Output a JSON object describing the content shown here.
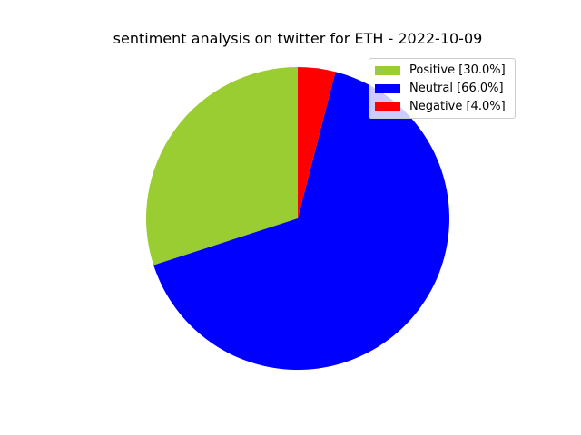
{
  "chart_data": {
    "type": "pie",
    "title": "sentiment analysis on twitter for ETH - 2022-10-09",
    "categories": [
      "Positive",
      "Neutral",
      "Negative"
    ],
    "values": [
      30.0,
      66.0,
      4.0
    ],
    "colors": [
      "#9acd32",
      "#0000ff",
      "#ff0000"
    ],
    "legend_labels": [
      "Positive [30.0%]",
      "Neutral [66.0%]",
      "Negative [4.0%]"
    ],
    "start_angle_deg": 90,
    "direction": "counterclockwise",
    "legend_position": "top-right"
  }
}
